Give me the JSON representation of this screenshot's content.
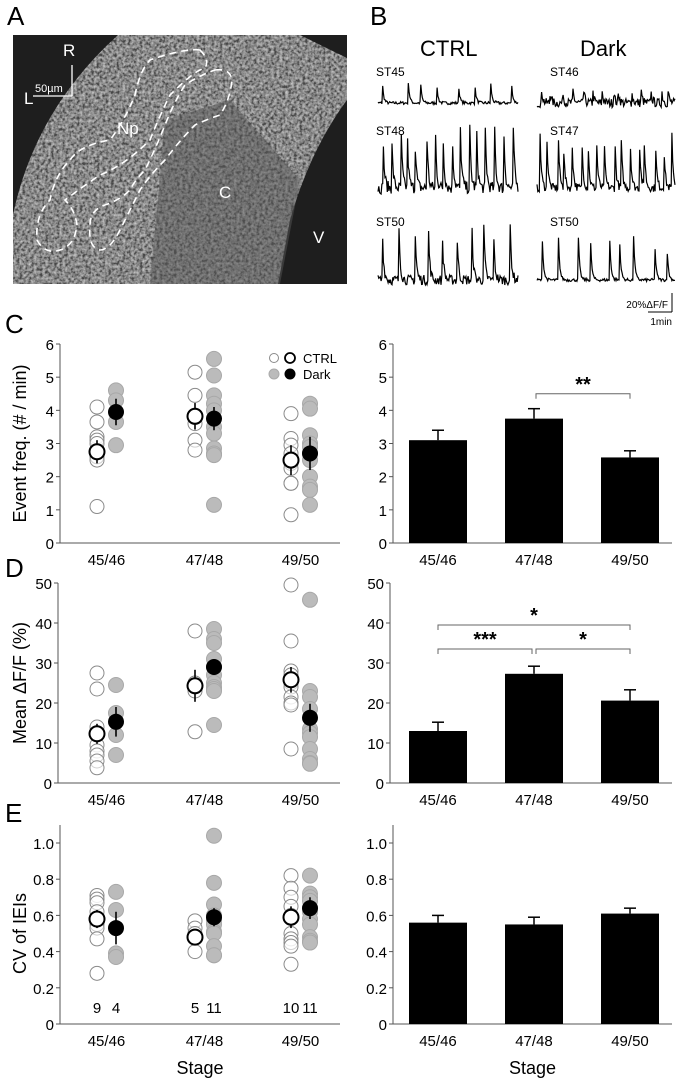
{
  "panel_letters": {
    "a": "A",
    "b": "B",
    "c": "C",
    "d": "D",
    "e": "E"
  },
  "image_panel": {
    "labels": {
      "rostral": "R",
      "lateral": "L",
      "scale": "50µm",
      "neuropil": "Np",
      "cells": "C",
      "ventricle": "V"
    }
  },
  "traces_panel": {
    "columns": [
      "CTRL",
      "Dark"
    ],
    "trace_labels": [
      [
        "ST45",
        "ST46"
      ],
      [
        "ST48",
        "ST47"
      ],
      [
        "ST50",
        "ST50"
      ]
    ],
    "scale_y": "20%ΔF/F",
    "scale_x": "1min"
  },
  "legend": {
    "ctrl": "CTRL",
    "dark": "Dark"
  },
  "colors": {
    "bar": "#000000",
    "dark_point": "#bbbbbb",
    "ctrl_point_stroke": "#8a8a8a",
    "bracket": "#666666"
  },
  "chart_data": [
    {
      "type": "scatter",
      "id": "C-left",
      "ylabel": "Event freq. (# / min)",
      "xlabel": "",
      "categories": [
        "45/46",
        "47/48",
        "49/50"
      ],
      "ylim": [
        0,
        6
      ],
      "yticks": [
        0,
        1,
        2,
        3,
        4,
        5,
        6
      ],
      "series": [
        {
          "name": "CTRL",
          "points": [
            [
              4.1,
              3.65,
              3.2,
              3.1,
              3.0,
              2.75,
              2.6,
              2.5,
              1.1
            ],
            [
              5.15,
              4.45,
              3.6,
              3.1,
              2.8
            ],
            [
              3.9,
              3.15,
              2.95,
              2.7,
              2.5,
              2.4,
              2.25,
              1.8,
              1.8,
              0.85
            ]
          ],
          "mean": [
            2.75,
            3.82,
            2.5
          ],
          "sem": [
            0.35,
            0.4,
            0.45
          ]
        },
        {
          "name": "Dark",
          "points": [
            [
              4.6,
              4.3,
              3.65,
              2.95
            ],
            [
              5.55,
              5.05,
              4.45,
              4.2,
              4.0,
              3.5,
              3.3,
              2.85,
              2.7,
              2.65,
              1.15
            ],
            [
              4.2,
              4.05,
              3.25,
              3.0,
              2.9,
              2.7,
              2.5,
              2.0,
              1.7,
              1.6,
              1.15
            ]
          ],
          "mean": [
            3.95,
            3.75,
            2.7
          ],
          "sem": [
            0.4,
            0.35,
            0.5
          ]
        }
      ]
    },
    {
      "type": "bar",
      "id": "C-right",
      "ylabel": "",
      "categories": [
        "45/46",
        "47/48",
        "49/50"
      ],
      "ylim": [
        0,
        6
      ],
      "yticks": [
        0,
        1,
        2,
        3,
        4,
        5,
        6
      ],
      "values": [
        3.1,
        3.75,
        2.58
      ],
      "errors": [
        0.3,
        0.3,
        0.2
      ],
      "annotations": [
        {
          "from": 1,
          "to": 2,
          "y": 4.5,
          "label": "**"
        }
      ]
    },
    {
      "type": "scatter",
      "id": "D-left",
      "ylabel": "Mean ΔF/F (%)",
      "xlabel": "",
      "categories": [
        "45/46",
        "47/48",
        "49/50"
      ],
      "ylim": [
        0,
        50
      ],
      "yticks": [
        0,
        10,
        20,
        30,
        40,
        50
      ],
      "series": [
        {
          "name": "CTRL",
          "points": [
            [
              27.5,
              23.5,
              14,
              12,
              9.5,
              8,
              7,
              5.5,
              3.8
            ],
            [
              38,
              25,
              24,
              23,
              12.8
            ],
            [
              49.5,
              35.5,
              28,
              27,
              25,
              24,
              21.5,
              20,
              19.5,
              8.5
            ]
          ],
          "mean": [
            12.3,
            24.3,
            25.8
          ],
          "sem": [
            2.5,
            4,
            3.2
          ]
        },
        {
          "name": "Dark",
          "points": [
            [
              24.5,
              17.5,
              12,
              7
            ],
            [
              38.5,
              36,
              35,
              31,
              29,
              27,
              25,
              24,
              23.5,
              23,
              14.5
            ],
            [
              45.8,
              23,
              21.5,
              18.5,
              13.5,
              12.5,
              11.5,
              8.5,
              6,
              5,
              4.8
            ]
          ],
          "mean": [
            15.3,
            29,
            16.3
          ],
          "sem": [
            3.7,
            2,
            3.5
          ]
        }
      ]
    },
    {
      "type": "bar",
      "id": "D-right",
      "ylabel": "",
      "categories": [
        "45/46",
        "47/48",
        "49/50"
      ],
      "ylim": [
        0,
        50
      ],
      "yticks": [
        0,
        10,
        20,
        30,
        40,
        50
      ],
      "values": [
        13,
        27.3,
        20.6
      ],
      "errors": [
        2.2,
        1.9,
        2.7
      ],
      "annotations": [
        {
          "from": 0,
          "to": 1,
          "y": 33.5,
          "label": "***"
        },
        {
          "from": 1,
          "to": 2,
          "y": 33.5,
          "label": "*"
        },
        {
          "from": 0,
          "to": 2,
          "y": 39.5,
          "label": "*"
        }
      ]
    },
    {
      "type": "scatter",
      "id": "E-left",
      "ylabel": "CV of IEIs",
      "xlabel": "Stage",
      "categories": [
        "45/46",
        "47/48",
        "49/50"
      ],
      "ylim": [
        0,
        1.1
      ],
      "yticks": [
        0,
        0.2,
        0.4,
        0.6,
        0.8,
        1.0
      ],
      "n_labels": [
        [
          "9",
          "4"
        ],
        [
          "5",
          "11"
        ],
        [
          "10",
          "11"
        ]
      ],
      "series": [
        {
          "name": "CTRL",
          "points": [
            [
              0.71,
              0.69,
              0.67,
              0.62,
              0.58,
              0.55,
              0.53,
              0.47,
              0.28
            ],
            [
              0.57,
              0.53,
              0.5,
              0.48,
              0.4
            ],
            [
              0.82,
              0.75,
              0.7,
              0.65,
              0.6,
              0.5,
              0.47,
              0.45,
              0.43,
              0.33
            ]
          ],
          "mean": [
            0.58,
            0.48,
            0.59
          ],
          "sem": [
            0.05,
            0.04,
            0.06
          ]
        },
        {
          "name": "Dark",
          "points": [
            [
              0.73,
              0.63,
              0.39,
              0.37
            ],
            [
              1.04,
              0.78,
              0.66,
              0.6,
              0.57,
              0.55,
              0.51,
              0.5,
              0.43,
              0.38,
              0.38
            ],
            [
              0.82,
              0.72,
              0.7,
              0.68,
              0.64,
              0.62,
              0.58,
              0.55,
              0.48,
              0.46,
              0.45
            ]
          ],
          "mean": [
            0.53,
            0.59,
            0.64
          ],
          "sem": [
            0.09,
            0.05,
            0.06
          ]
        }
      ]
    },
    {
      "type": "bar",
      "id": "E-right",
      "ylabel": "",
      "xlabel": "Stage",
      "categories": [
        "45/46",
        "47/48",
        "49/50"
      ],
      "ylim": [
        0,
        1.1
      ],
      "yticks": [
        0,
        0.2,
        0.4,
        0.6,
        0.8,
        1.0
      ],
      "values": [
        0.56,
        0.55,
        0.61
      ],
      "errors": [
        0.04,
        0.04,
        0.03
      ],
      "annotations": []
    }
  ]
}
